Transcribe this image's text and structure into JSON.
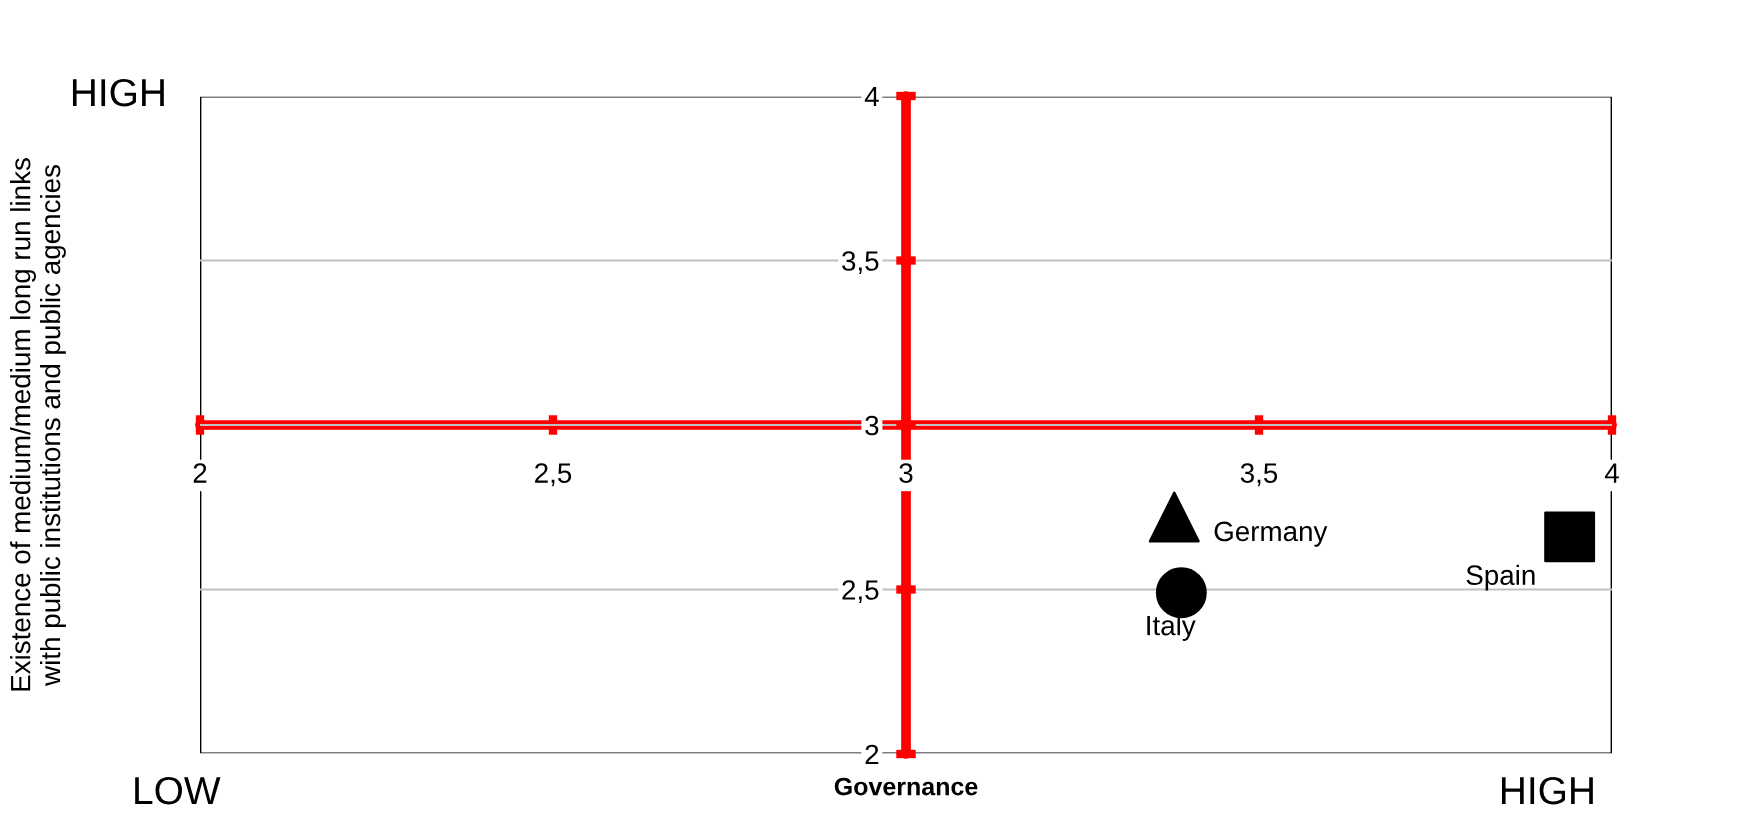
{
  "chart_data": {
    "type": "scatter",
    "xlabel": "Governance",
    "ylabel": "Existence of medium/medium long run links\nwith public institutions and public agencies",
    "xlim": [
      2,
      4
    ],
    "ylim": [
      2,
      4
    ],
    "xticks": [
      2,
      {
        "value": 2.5,
        "label": "2,5"
      },
      3,
      {
        "value": 3.5,
        "label": "3,5"
      },
      4
    ],
    "yticks": [
      2,
      {
        "value": 2.5,
        "label": "2,5"
      },
      3,
      {
        "value": 3.5,
        "label": "3,5"
      },
      4
    ],
    "grid": "y",
    "legend": false,
    "annotations": [
      "HIGH",
      "LOW",
      "HIGH"
    ],
    "series": [
      {
        "name": "Germany",
        "color": "#000000",
        "marker": "triangle",
        "x": [
          3.38
        ],
        "values": [
          2.72
        ]
      },
      {
        "name": "Italy",
        "color": "#000000",
        "marker": "circle",
        "x": [
          3.39
        ],
        "values": [
          2.49
        ]
      },
      {
        "name": "Spain",
        "color": "#000000",
        "marker": "square",
        "x": [
          3.94
        ],
        "values": [
          2.66
        ]
      }
    ]
  }
}
